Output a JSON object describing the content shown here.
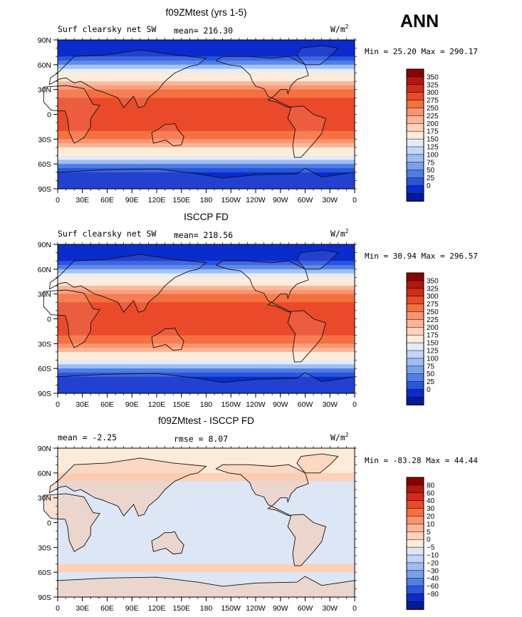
{
  "season": "ANN",
  "panels": [
    {
      "title": "f09ZMtest (yrs 1-5)",
      "left_label": "Surf clearsky net SW",
      "center_label": "mean= 216.30",
      "units": "W/m",
      "units_sup": "2",
      "minmax": "Min =  25.20 Max = 290.17",
      "map_kind": "abs"
    },
    {
      "title": "ISCCP FD",
      "left_label": "Surf clearsky net SW",
      "center_label": "mean= 218.56",
      "units": "W/m",
      "units_sup": "2",
      "minmax": "Min =  30.94 Max = 296.57",
      "map_kind": "abs2"
    },
    {
      "title": "f09ZMtest - ISCCP FD",
      "left_label": "mean =   -2.25",
      "center_label": "rmse =    8.07",
      "units": "W/m",
      "units_sup": "2",
      "minmax": "Min = -83.28 Max =  44.44",
      "map_kind": "diff"
    }
  ],
  "x_ticks": [
    "0",
    "30E",
    "60E",
    "90E",
    "120E",
    "150E",
    "180",
    "150W",
    "120W",
    "90W",
    "60W",
    "30W",
    "0"
  ],
  "y_ticks": [
    "90N",
    "60N",
    "30N",
    "0",
    "30S",
    "60S",
    "90S"
  ],
  "colorbars": {
    "abs": {
      "labels": [
        "350",
        "325",
        "300",
        "275",
        "250",
        "225",
        "200",
        "175",
        "150",
        "125",
        "100",
        "75",
        "50",
        "25",
        "0"
      ],
      "colors": [
        "#8b0000",
        "#b01810",
        "#d42a18",
        "#ea4a2a",
        "#f5703f",
        "#fa9470",
        "#fcb496",
        "#fdd2b8",
        "#feebd8",
        "#e2ecf8",
        "#c2d6f6",
        "#9ebdf2",
        "#7aa0ec",
        "#4e7ee6",
        "#2b55dd",
        "#0a2ccc",
        "#001a99"
      ]
    },
    "diff": {
      "labels": [
        "80",
        "60",
        "40",
        "30",
        "20",
        "10",
        "5",
        "0",
        "−5",
        "−10",
        "−20",
        "−30",
        "−40",
        "−60",
        "−80"
      ],
      "colors": [
        "#8b0000",
        "#b01810",
        "#d42a18",
        "#ea4a2a",
        "#f5703f",
        "#fa9470",
        "#fcb496",
        "#fdd2b8",
        "#fcebd8",
        "#dce6f4",
        "#c0d4f4",
        "#9ebdf2",
        "#7aa0ec",
        "#4e7ee6",
        "#2b55dd",
        "#0a2ccc",
        "#001a99"
      ]
    }
  },
  "chart_data": [
    {
      "type": "heatmap",
      "title": "f09ZMtest (yrs 1-5)",
      "subtitle": "Surf clearsky net SW",
      "mean": 216.3,
      "min": 25.2,
      "max": 290.17,
      "units": "W/m2",
      "x_range": [
        0,
        360
      ],
      "y_range": [
        -90,
        90
      ],
      "levels": [
        0,
        25,
        50,
        75,
        100,
        125,
        150,
        175,
        200,
        225,
        250,
        275,
        300,
        325,
        350
      ]
    },
    {
      "type": "heatmap",
      "title": "ISCCP FD",
      "subtitle": "Surf clearsky net SW",
      "mean": 218.56,
      "min": 30.94,
      "max": 296.57,
      "units": "W/m2",
      "x_range": [
        0,
        360
      ],
      "y_range": [
        -90,
        90
      ],
      "levels": [
        0,
        25,
        50,
        75,
        100,
        125,
        150,
        175,
        200,
        225,
        250,
        275,
        300,
        325,
        350
      ]
    },
    {
      "type": "heatmap",
      "title": "f09ZMtest - ISCCP FD",
      "mean": -2.25,
      "rmse": 8.07,
      "min": -83.28,
      "max": 44.44,
      "units": "W/m2",
      "x_range": [
        0,
        360
      ],
      "y_range": [
        -90,
        90
      ],
      "levels": [
        -80,
        -60,
        -40,
        -30,
        -20,
        -10,
        -5,
        0,
        5,
        10,
        20,
        30,
        40,
        60,
        80
      ]
    }
  ]
}
